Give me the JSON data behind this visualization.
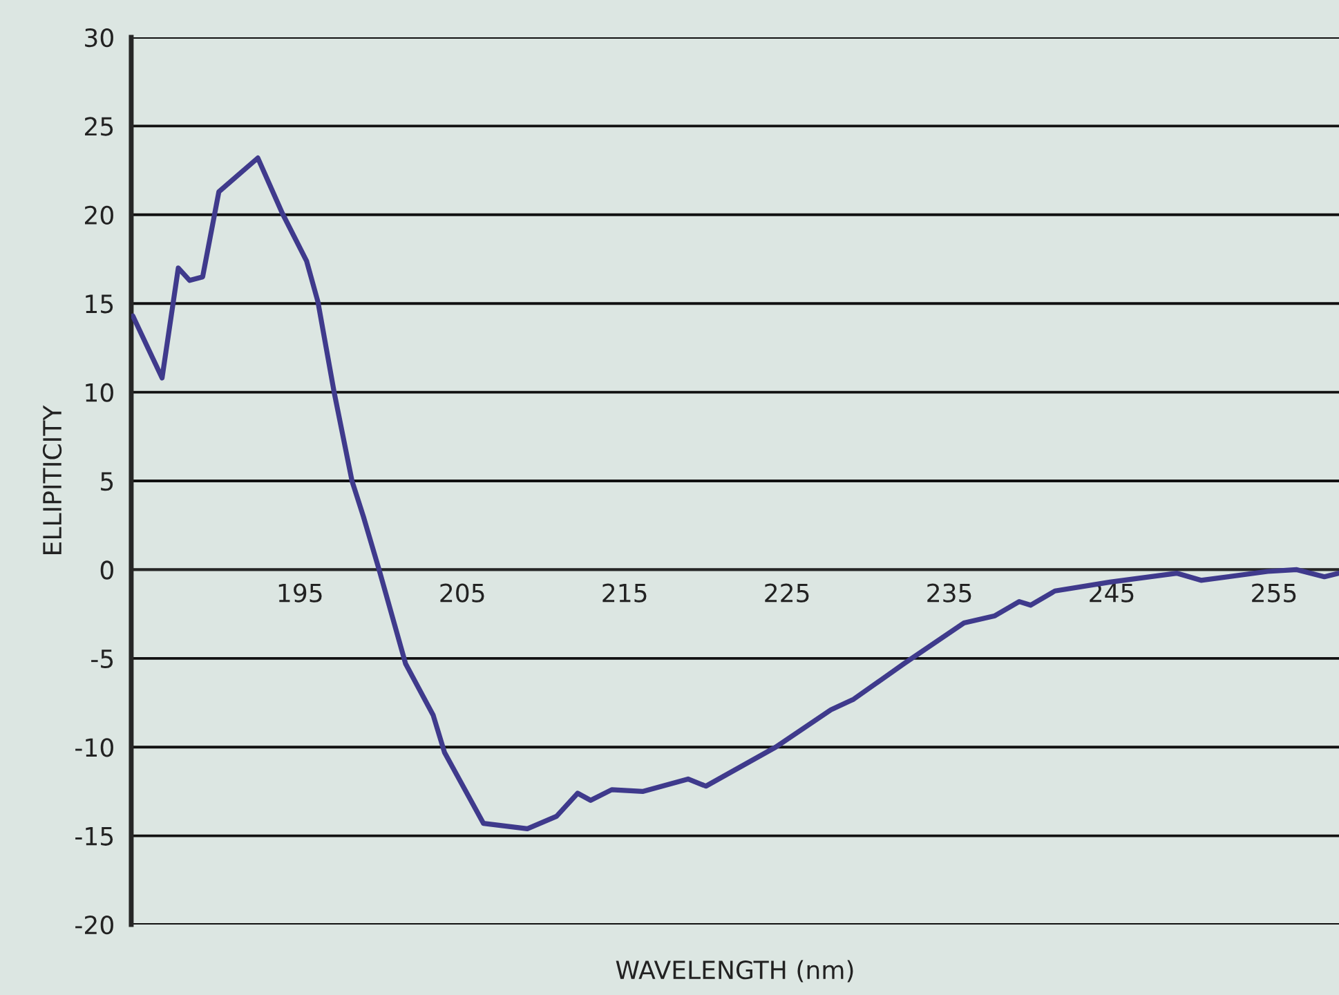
{
  "chart_data": {
    "type": "line",
    "xlabel": "WAVELENGTH (nm)",
    "ylabel": "ELLIPITICITY",
    "x": [
      184.7,
      186.5,
      187.5,
      188.2,
      189.0,
      190.0,
      192.4,
      193.9,
      195.4,
      196.1,
      197.1,
      198.2,
      198.9,
      199.9,
      201.5,
      203.2,
      203.9,
      206.3,
      209.0,
      210.8,
      212.1,
      212.9,
      214.2,
      216.1,
      218.9,
      220.0,
      224.3,
      227.7,
      229.1,
      232.2,
      235.9,
      237.8,
      239.3,
      240.0,
      241.5,
      244.9,
      249.0,
      250.5,
      254.6,
      256.4,
      258.1,
      259.0
    ],
    "series": [
      {
        "color": "#3f3a8c",
        "values": [
          14.3,
          10.8,
          17.0,
          16.3,
          16.5,
          21.3,
          23.2,
          20.1,
          17.4,
          15.1,
          10.0,
          5.0,
          3.0,
          -0.1,
          -5.3,
          -8.2,
          -10.3,
          -14.3,
          -14.6,
          -13.9,
          -12.6,
          -13.0,
          -12.4,
          -12.5,
          -11.8,
          -12.2,
          -10.0,
          -7.9,
          -7.3,
          -5.3,
          -3.0,
          -2.6,
          -1.8,
          -2.0,
          -1.2,
          -0.7,
          -0.2,
          -0.6,
          -0.1,
          0.0,
          -0.4,
          -0.2
        ]
      }
    ],
    "xlim": [
      184.6,
      259
    ],
    "ylim": [
      -20,
      30
    ],
    "xticks": [
      195,
      205,
      215,
      225,
      235,
      245,
      255
    ],
    "yticks": [
      -20,
      -15,
      -10,
      -5,
      0,
      5,
      10,
      15,
      20,
      25,
      30
    ],
    "grid": "y",
    "marker": "none",
    "line_style": "solid"
  }
}
